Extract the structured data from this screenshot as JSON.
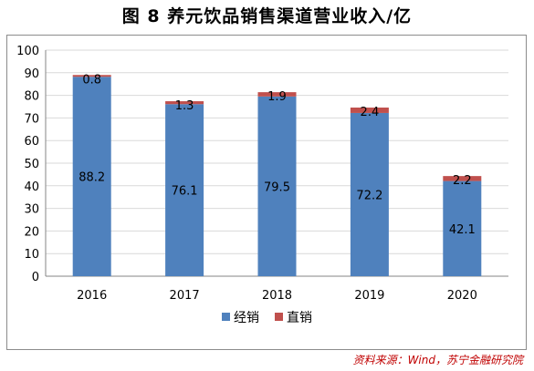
{
  "title": "图 8  养元饮品销售渠道营业收入/亿",
  "source": "资料来源：Wind，苏宁金融研究院",
  "chart_data": {
    "type": "bar",
    "stacked": true,
    "title": "图 8  养元饮品销售渠道营业收入/亿",
    "categories": [
      "2016",
      "2017",
      "2018",
      "2019",
      "2020"
    ],
    "series": [
      {
        "name": "经销",
        "values": [
          88.2,
          76.1,
          79.5,
          72.2,
          42.1
        ],
        "color": "#4f81bd"
      },
      {
        "name": "直销",
        "values": [
          0.8,
          1.3,
          1.9,
          2.4,
          2.2
        ],
        "color": "#c0504d"
      }
    ],
    "ylim": [
      0,
      100
    ],
    "yticks": [
      0,
      10,
      20,
      30,
      40,
      50,
      60,
      70,
      80,
      90,
      100
    ],
    "grid": true,
    "legend": "bottom",
    "data_labels": true
  }
}
